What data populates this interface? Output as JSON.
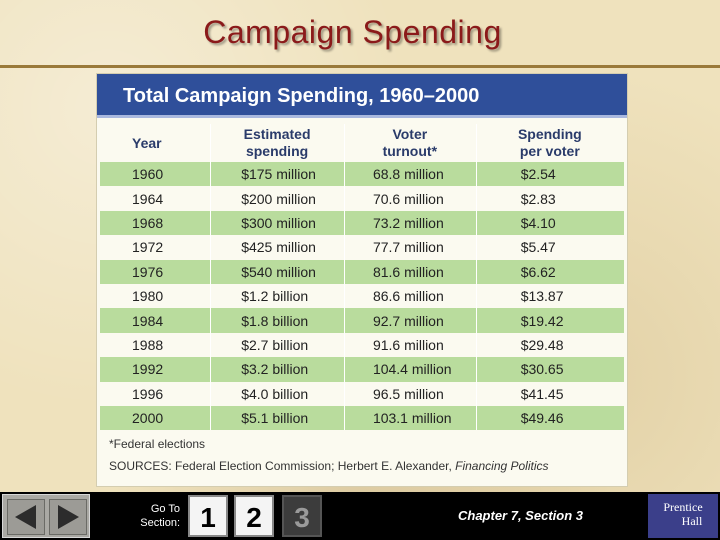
{
  "slide": {
    "title": "Campaign Spending"
  },
  "table": {
    "title": "Total Campaign Spending, 1960–2000",
    "columns": [
      {
        "line1": "Year",
        "line2": ""
      },
      {
        "line1": "Estimated",
        "line2": "spending"
      },
      {
        "line1": "Voter",
        "line2": "turnout*"
      },
      {
        "line1": "Spending",
        "line2": "per voter"
      }
    ],
    "rows": [
      [
        "1960",
        "$175 million",
        "68.8 million",
        "$2.54"
      ],
      [
        "1964",
        "$200 million",
        "70.6 million",
        "$2.83"
      ],
      [
        "1968",
        "$300 million",
        "73.2 million",
        "$4.10"
      ],
      [
        "1972",
        "$425 million",
        "77.7 million",
        "$5.47"
      ],
      [
        "1976",
        "$540 million",
        "81.6 million",
        "$6.62"
      ],
      [
        "1980",
        "$1.2 billion",
        "86.6 million",
        "$13.87"
      ],
      [
        "1984",
        "$1.8 billion",
        "92.7 million",
        "$19.42"
      ],
      [
        "1988",
        "$2.7 billion",
        "91.6 million",
        "$29.48"
      ],
      [
        "1992",
        "$3.2 billion",
        "104.4 million",
        "$30.65"
      ],
      [
        "1996",
        "$4.0 billion",
        "96.5 million",
        "$41.45"
      ],
      [
        "2000",
        "$5.1 billion",
        "103.1 million",
        "$49.46"
      ]
    ],
    "footnote": "*Federal elections",
    "sources_prefix": "SOURCES: Federal Election Commission; Herbert E. Alexander, ",
    "sources_title": "Financing Politics"
  },
  "nav": {
    "goto_line1": "Go To",
    "goto_line2": "Section:",
    "sections": [
      "1",
      "2",
      "3"
    ],
    "chapter_label": "Chapter 7, Section 3",
    "logo_line1": "Prentice",
    "logo_line2": "Hall",
    "prev_icon": "arrow-left-icon",
    "next_icon": "arrow-right-icon"
  },
  "colors": {
    "title": "#8b1a1a",
    "table_header": "#2f4f9a",
    "row_band": "#b9dc9d",
    "nav_bg": "#000000"
  }
}
